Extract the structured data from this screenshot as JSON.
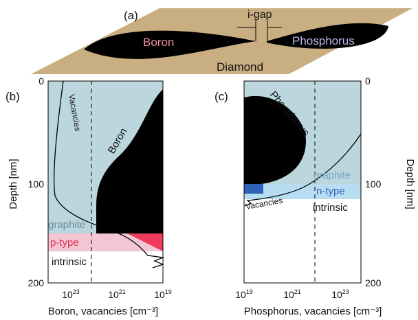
{
  "panel_a": {
    "label": "(a)",
    "gap_label": "i-gap",
    "left_region": "Boron",
    "right_region": "Phosphorus",
    "substrate": "Diamond"
  },
  "panel_b": {
    "label": "(b)",
    "y_axis_label": "Depth [nm]",
    "x_axis_label": "Boron, vacancies [cm⁻³]",
    "y_tick_labels": [
      "0",
      "100",
      "200"
    ],
    "x_tick_labels": [
      {
        "base": "10",
        "exponent": "23"
      },
      {
        "base": "10",
        "exponent": "21"
      },
      {
        "base": "10",
        "exponent": "19"
      }
    ],
    "curve_labels": [
      "Vacancies",
      "Boron"
    ],
    "layers": [
      "graphite",
      "p-type",
      "intrinsic"
    ]
  },
  "panel_c": {
    "label": "(c)",
    "y_axis_label": "Depth [nm]",
    "x_axis_label": "Phosphorus, vacancies [cm⁻³]",
    "y_tick_labels": [
      "0",
      "100",
      "200"
    ],
    "x_tick_labels": [
      {
        "base": "10",
        "exponent": "19"
      },
      {
        "base": "10",
        "exponent": "21"
      },
      {
        "base": "10",
        "exponent": "23"
      }
    ],
    "curve_labels": [
      "Phosphorus",
      "Vacancies"
    ],
    "layers": [
      "graphite",
      "n-type",
      "intrinsic"
    ]
  }
}
